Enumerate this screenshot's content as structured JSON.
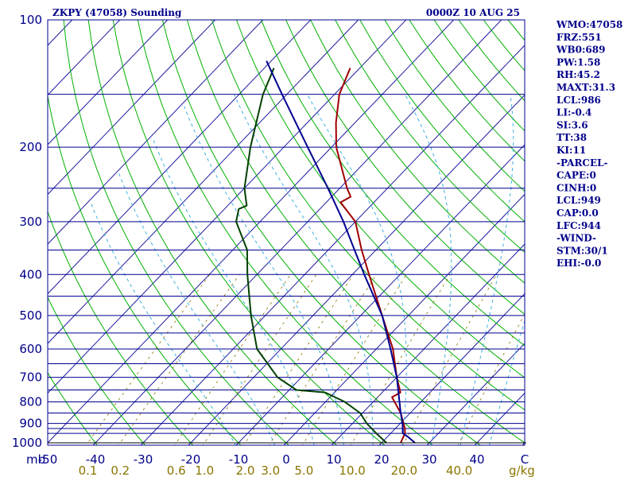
{
  "title_left": "ZKPY (47058) Sounding",
  "title_right": "0000Z 10 AUG 25",
  "pressure_unit": "mb",
  "mixing_unit": "g/kg",
  "colors": {
    "temperature": "#a00000",
    "dewpoint": "#004000",
    "parcel": "#000090",
    "isobar": "#000090",
    "isotherm": "#1a1aa0",
    "dry_adiabat": "#00b000",
    "moist_adiabat": "#40b0e0",
    "mixing_ratio": "#8b7500",
    "text": "#00008b"
  },
  "indices": [
    "WMO:47058",
    "FRZ:551",
    "WB0:689",
    "PW:1.58",
    "RH:45.2",
    "MAXT:31.3",
    "LCL:986",
    "LI:-0.4",
    "SI:3.6",
    "TT:38",
    "KI:11",
    "-PARCEL-",
    "CAPE:0",
    "CINH:0",
    "LCL:949",
    "CAP:0.0",
    "LFC:944",
    "-WIND-",
    "STM:30/1",
    "EHI:-0.0"
  ],
  "chart_data": {
    "type": "line",
    "title": "ZKPY (47058) Sounding",
    "subtitle": "0000Z 10 AUG 25",
    "xlabel": "",
    "ylabel": "mb",
    "y_scale": "log",
    "ylim": [
      1000,
      100
    ],
    "xlim": [
      -50,
      50
    ],
    "pressure_ticks": [
      100,
      200,
      300,
      400,
      500,
      600,
      700,
      800,
      900,
      1000
    ],
    "isobars": [
      100,
      150,
      200,
      250,
      300,
      350,
      400,
      450,
      500,
      550,
      600,
      650,
      700,
      750,
      800,
      850,
      900,
      925,
      950,
      1000
    ],
    "temp_ticks": [
      {
        "value": -50,
        "label": "-50"
      },
      {
        "value": -40,
        "label": "-40"
      },
      {
        "value": -30,
        "label": "-30"
      },
      {
        "value": -20,
        "label": "-20"
      },
      {
        "value": -10,
        "label": "-10"
      },
      {
        "value": 0,
        "label": "0"
      },
      {
        "value": 10,
        "label": "10"
      },
      {
        "value": 20,
        "label": "20"
      },
      {
        "value": 30,
        "label": "30"
      },
      {
        "value": 40,
        "label": "40"
      },
      {
        "value": 50,
        "label": "C"
      }
    ],
    "mixing_ratio_ticks": [
      {
        "value": 0.1,
        "label": "0.1"
      },
      {
        "value": 0.2,
        "label": "0.2"
      },
      {
        "value": 0.6,
        "label": "0.6"
      },
      {
        "value": 1.0,
        "label": "1.0"
      },
      {
        "value": 2.0,
        "label": "2.0"
      },
      {
        "value": 3.0,
        "label": "3.0"
      },
      {
        "value": 5.0,
        "label": "5.0"
      },
      {
        "value": 10.0,
        "label": "10.0"
      },
      {
        "value": 20.0,
        "label": "20.0"
      },
      {
        "value": 40.0,
        "label": "40.0"
      }
    ],
    "series": [
      {
        "key": "temperature",
        "points": [
          {
            "p": 1000,
            "t": 24.0
          },
          {
            "p": 950,
            "t": 23.0
          },
          {
            "p": 925,
            "t": 22.0
          },
          {
            "p": 850,
            "t": 18.0
          },
          {
            "p": 780,
            "t": 13.0
          },
          {
            "p": 760,
            "t": 13.8
          },
          {
            "p": 700,
            "t": 10.0
          },
          {
            "p": 600,
            "t": 3.5
          },
          {
            "p": 500,
            "t": -5.5
          },
          {
            "p": 400,
            "t": -16.5
          },
          {
            "p": 350,
            "t": -23.0
          },
          {
            "p": 300,
            "t": -30.0
          },
          {
            "p": 270,
            "t": -37.0
          },
          {
            "p": 262,
            "t": -36.0
          },
          {
            "p": 250,
            "t": -38.5
          },
          {
            "p": 200,
            "t": -49.0
          },
          {
            "p": 175,
            "t": -54.0
          },
          {
            "p": 150,
            "t": -59.0
          },
          {
            "p": 130,
            "t": -62.0
          }
        ]
      },
      {
        "key": "dewpoint",
        "points": [
          {
            "p": 1000,
            "t": 21.0
          },
          {
            "p": 950,
            "t": 17.0
          },
          {
            "p": 900,
            "t": 13.0
          },
          {
            "p": 850,
            "t": 9.5
          },
          {
            "p": 800,
            "t": 4.0
          },
          {
            "p": 760,
            "t": -2.0
          },
          {
            "p": 750,
            "t": -8.5
          },
          {
            "p": 700,
            "t": -15.0
          },
          {
            "p": 600,
            "t": -25.0
          },
          {
            "p": 500,
            "t": -33.0
          },
          {
            "p": 400,
            "t": -42.0
          },
          {
            "p": 350,
            "t": -47.0
          },
          {
            "p": 300,
            "t": -55.0
          },
          {
            "p": 280,
            "t": -57.0
          },
          {
            "p": 275,
            "t": -56.0
          },
          {
            "p": 250,
            "t": -60.0
          },
          {
            "p": 200,
            "t": -67.0
          },
          {
            "p": 150,
            "t": -75.0
          },
          {
            "p": 130,
            "t": -78.0
          }
        ]
      },
      {
        "key": "parcel",
        "points": [
          {
            "p": 1000,
            "t": 27.0
          },
          {
            "p": 970,
            "t": 24.5
          },
          {
            "p": 949,
            "t": 22.5
          },
          {
            "p": 900,
            "t": 20.5
          },
          {
            "p": 850,
            "t": 18.0
          },
          {
            "p": 800,
            "t": 15.5
          },
          {
            "p": 700,
            "t": 10.0
          },
          {
            "p": 600,
            "t": 3.0
          },
          {
            "p": 500,
            "t": -5.5
          },
          {
            "p": 400,
            "t": -17.5
          },
          {
            "p": 350,
            "t": -24.5
          },
          {
            "p": 300,
            "t": -32.5
          },
          {
            "p": 250,
            "t": -42.5
          },
          {
            "p": 200,
            "t": -55.0
          },
          {
            "p": 150,
            "t": -71.0
          },
          {
            "p": 125,
            "t": -81.0
          }
        ]
      }
    ]
  }
}
